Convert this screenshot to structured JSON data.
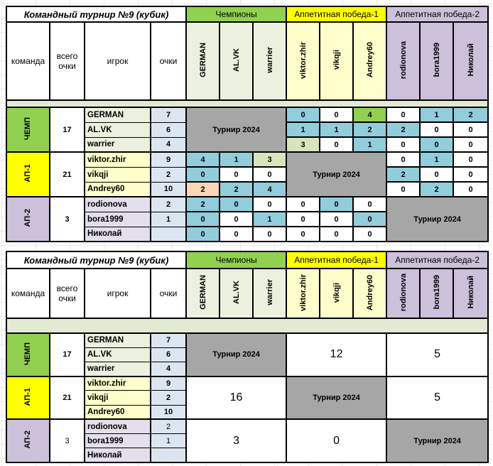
{
  "title": "Командный турнир №9 (кубик)",
  "tournament_label": "Турнир 2024",
  "headers": {
    "team": "команда",
    "total": "всего очки",
    "player": "игрок",
    "points": "очки"
  },
  "groups": [
    {
      "label": "Чемпионы",
      "band": "#92D050",
      "header_bg": "#EBF1DE",
      "name_bg": "#EBF1DE",
      "players": [
        "GERMAN",
        "AL.VK",
        "warrier"
      ]
    },
    {
      "label": "Аппетитная победа-1",
      "band": "#FFFF00",
      "header_bg": "#FFFFCC",
      "name_bg": "#FFFFCC",
      "players": [
        "viktor.zhir",
        "vikqji",
        "Andrey60"
      ]
    },
    {
      "label": "Аппетитная победа-2",
      "band": "#CCC0DA",
      "header_bg": "#CCC0DA",
      "name_bg": "#E4DFEC",
      "players": [
        "rodionova",
        "bora1999",
        "Николай"
      ]
    }
  ],
  "teams": [
    {
      "label": "ЧЕМП",
      "color": "#92D050",
      "total": "17",
      "points": [
        "7",
        "6",
        "4"
      ]
    },
    {
      "label": "АП-1",
      "color": "#FFFF00",
      "total": "21",
      "points": [
        "9",
        "2",
        "10"
      ]
    },
    {
      "label": "АП-2",
      "color": "#CCC0DA",
      "total": "3",
      "points": [
        "2",
        "1",
        ""
      ]
    }
  ],
  "colors": {
    "blue": "#92CDDC",
    "green": "#92D050",
    "lightgreen": "#D8E4BC",
    "orange": "#FBD5B5",
    "white": "#FFFFFF",
    "gray": "#A6A6A6",
    "points_col": "#DCE6F1",
    "separator": "#E2EAD3",
    "flag_triangle": "#1F7244"
  },
  "table1": {
    "blocks": [
      {
        "gray_tri": false,
        "rows": [
          [
            {
              "v": "0",
              "bg": "blue",
              "tri": true
            },
            {
              "v": "0",
              "bg": "white",
              "tri": false
            },
            {
              "v": "4",
              "bg": "green",
              "tri": true
            },
            {
              "v": "0",
              "bg": "white",
              "tri": true
            },
            {
              "v": "1",
              "bg": "blue",
              "tri": true
            },
            {
              "v": "2",
              "bg": "blue",
              "tri": true
            }
          ],
          [
            {
              "v": "1",
              "bg": "blue",
              "tri": true
            },
            {
              "v": "1",
              "bg": "blue",
              "tri": true
            },
            {
              "v": "2",
              "bg": "blue",
              "tri": true
            },
            {
              "v": "2",
              "bg": "blue",
              "tri": true
            },
            {
              "v": "0",
              "bg": "white",
              "tri": true
            },
            {
              "v": "0",
              "bg": "white",
              "tri": true
            }
          ],
          [
            {
              "v": "3",
              "bg": "lightgreen",
              "tri": true
            },
            {
              "v": "0",
              "bg": "white",
              "tri": true
            },
            {
              "v": "1",
              "bg": "blue",
              "tri": true
            },
            {
              "v": "0",
              "bg": "white",
              "tri": true
            },
            {
              "v": "0",
              "bg": "blue",
              "tri": true
            },
            {
              "v": "0",
              "bg": "white",
              "tri": true
            }
          ]
        ]
      },
      {
        "gray_tri": false,
        "rows": [
          [
            {
              "v": "4",
              "bg": "blue",
              "tri": true
            },
            {
              "v": "1",
              "bg": "blue",
              "tri": true
            },
            {
              "v": "3",
              "bg": "lightgreen",
              "tri": true
            },
            {
              "v": "0",
              "bg": "white",
              "tri": true
            },
            {
              "v": "1",
              "bg": "blue",
              "tri": true
            },
            {
              "v": "0",
              "bg": "white",
              "tri": true
            }
          ],
          [
            {
              "v": "0",
              "bg": "blue",
              "tri": true
            },
            {
              "v": "0",
              "bg": "white",
              "tri": false
            },
            {
              "v": "0",
              "bg": "white",
              "tri": false
            },
            {
              "v": "2",
              "bg": "blue",
              "tri": true
            },
            {
              "v": "0",
              "bg": "white",
              "tri": false
            },
            {
              "v": "0",
              "bg": "white",
              "tri": false
            }
          ],
          [
            {
              "v": "2",
              "bg": "orange",
              "tri": true
            },
            {
              "v": "2",
              "bg": "blue",
              "tri": true
            },
            {
              "v": "4",
              "bg": "blue",
              "tri": true
            },
            {
              "v": "0",
              "bg": "white",
              "tri": false
            },
            {
              "v": "2",
              "bg": "blue",
              "tri": true
            },
            {
              "v": "0",
              "bg": "white",
              "tri": false
            }
          ]
        ]
      },
      {
        "gray_tri": false,
        "rows": [
          [
            {
              "v": "2",
              "bg": "blue",
              "tri": true
            },
            {
              "v": "0",
              "bg": "blue",
              "tri": true
            },
            {
              "v": "0",
              "bg": "white",
              "tri": false
            },
            {
              "v": "0",
              "bg": "white",
              "tri": false
            },
            {
              "v": "0",
              "bg": "blue",
              "tri": true
            },
            {
              "v": "0",
              "bg": "white",
              "tri": true
            }
          ],
          [
            {
              "v": "0",
              "bg": "blue",
              "tri": true
            },
            {
              "v": "0",
              "bg": "white",
              "tri": false
            },
            {
              "v": "1",
              "bg": "blue",
              "tri": true
            },
            {
              "v": "0",
              "bg": "white",
              "tri": true
            },
            {
              "v": "0",
              "bg": "white",
              "tri": true
            },
            {
              "v": "0",
              "bg": "blue",
              "tri": true
            }
          ],
          [
            {
              "v": "0",
              "bg": "blue",
              "tri": true
            },
            {
              "v": "0",
              "bg": "white",
              "tri": true
            },
            {
              "v": "0",
              "bg": "white",
              "tri": true
            },
            {
              "v": "0",
              "bg": "white",
              "tri": true
            },
            {
              "v": "0",
              "bg": "white",
              "tri": false
            },
            {
              "v": "0",
              "bg": "white",
              "tri": true
            }
          ]
        ]
      }
    ]
  },
  "table2": {
    "blocks": [
      {
        "gray_tri": true,
        "thin": false,
        "merged": [
          {
            "v": "12",
            "tri": true
          },
          {
            "v": "5",
            "tri": true
          }
        ]
      },
      {
        "gray_tri": true,
        "thin": false,
        "merged": [
          {
            "v": "16",
            "tri": true
          },
          {
            "v": "5",
            "tri": true
          }
        ]
      },
      {
        "gray_tri": true,
        "thin": true,
        "merged": [
          {
            "v": "3",
            "tri": true
          },
          {
            "v": "0",
            "tri": true
          }
        ]
      }
    ]
  }
}
